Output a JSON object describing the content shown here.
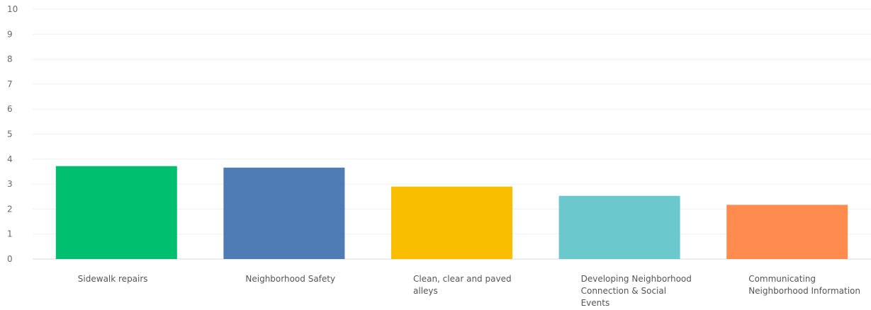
{
  "chart_data": {
    "type": "bar",
    "title": "",
    "xlabel": "",
    "ylabel": "",
    "ylim": [
      0,
      10
    ],
    "yticks": [
      0,
      1,
      2,
      3,
      4,
      5,
      6,
      7,
      8,
      9,
      10
    ],
    "grid": true,
    "categories": [
      [
        "Sidewalk repairs"
      ],
      [
        "Neighborhood Safety"
      ],
      [
        "Clean, clear and paved",
        "alleys"
      ],
      [
        "Developing Neighborhood",
        "Connection & Social",
        "Events"
      ],
      [
        "Communicating",
        "Neighborhood Information"
      ]
    ],
    "values": [
      3.72,
      3.66,
      2.9,
      2.53,
      2.17
    ],
    "colors": [
      "#00bf6f",
      "#507cb6",
      "#f9be00",
      "#6bc8cd",
      "#ff8b4f"
    ]
  },
  "colors": {
    "gridline": "#efefef",
    "axis": "#d9d9d9",
    "tick_text": "#6b6b6b",
    "label_text": "#555555"
  }
}
